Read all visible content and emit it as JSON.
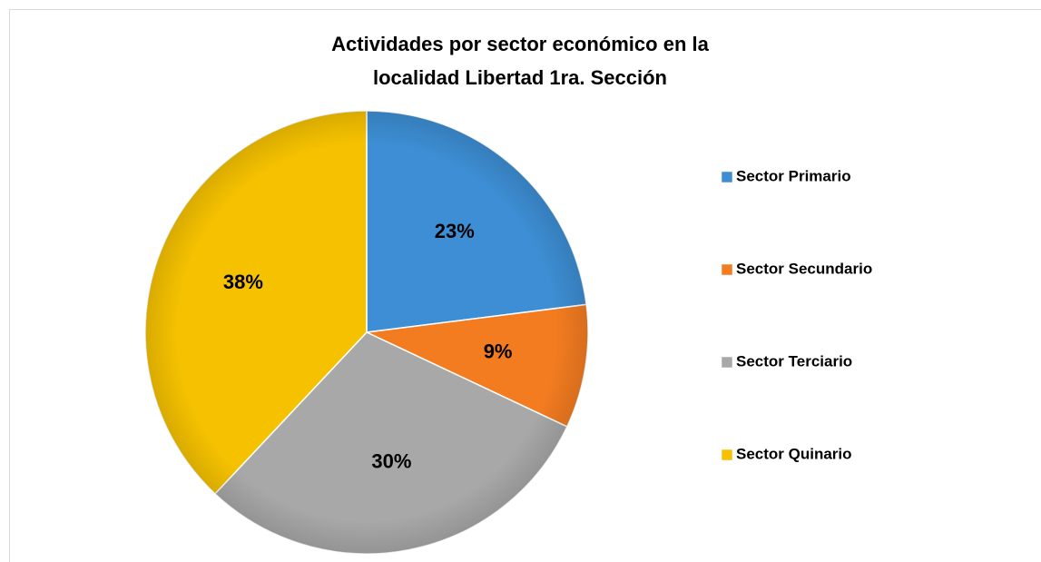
{
  "chart_data": {
    "type": "pie",
    "title": [
      "Actividades por sector económico en la",
      "localidad Libertad 1ra. Sección"
    ],
    "categories": [
      "Sector Primario",
      "Sector Secundario",
      "Sector Terciario",
      "Sector Quinario"
    ],
    "values": [
      23,
      9,
      30,
      38
    ],
    "value_labels": [
      "23%",
      "9%",
      "30%",
      "38%"
    ],
    "colors": [
      "#3d8ed4",
      "#f47c20",
      "#a8a8a8",
      "#f6c200"
    ],
    "legend": "right"
  }
}
